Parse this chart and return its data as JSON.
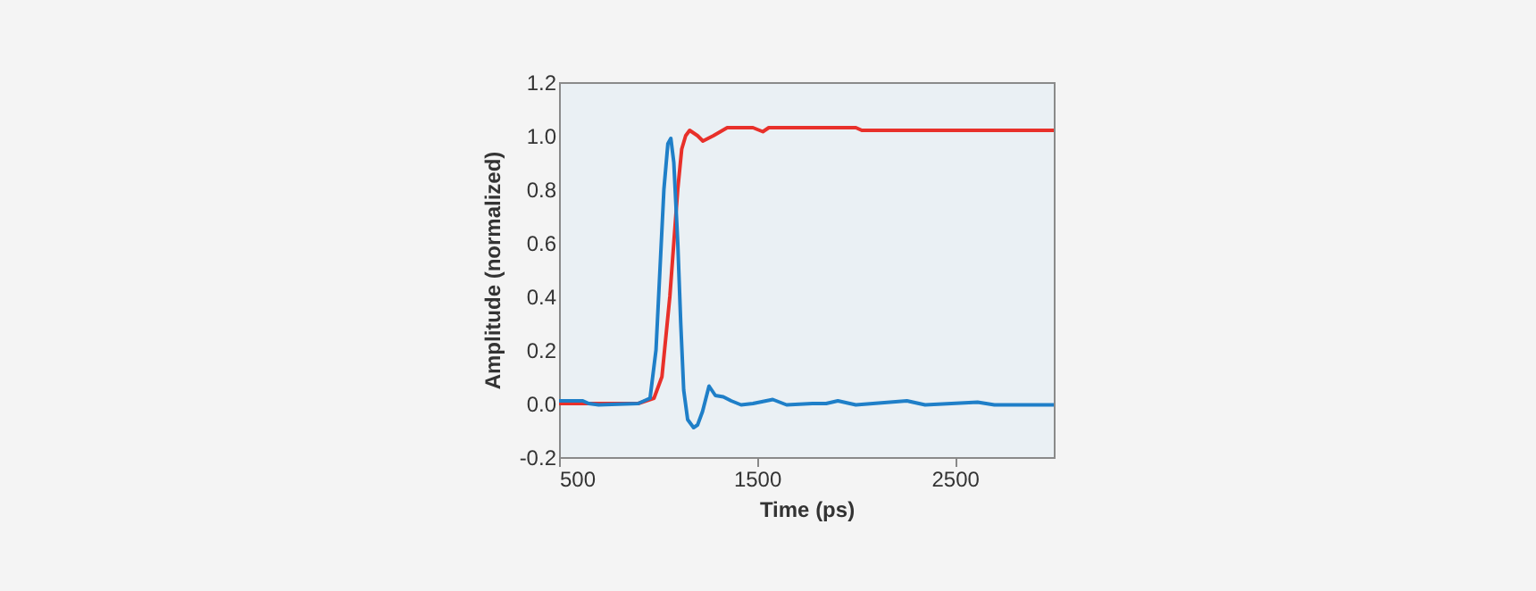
{
  "chart_data": {
    "type": "line",
    "xlabel": "Time (ps)",
    "ylabel": "Amplitude (normalized)",
    "xlim": [
      500,
      3000
    ],
    "xticks": [
      500,
      1500,
      2500
    ],
    "ylim": [
      -0.2,
      1.2
    ],
    "yticks": [
      {
        "value": -0.2,
        "label": "-0.2"
      },
      {
        "value": 0,
        "label": "0.0"
      },
      {
        "value": 0.2,
        "label": "0.2"
      },
      {
        "value": 0.4,
        "label": "0.4"
      },
      {
        "value": 0.6,
        "label": "0.6"
      },
      {
        "value": 0.8,
        "label": "0.8"
      },
      {
        "value": 1,
        "label": "1.0"
      },
      {
        "value": 1.2,
        "label": "1.2"
      }
    ],
    "grid": false,
    "legend": false,
    "marker": "none",
    "line_style": "solid",
    "series": [
      {
        "color": "#e8302a",
        "x": [
          500,
          900,
          980,
          1020,
          1060,
          1080,
          1100,
          1120,
          1140,
          1160,
          1200,
          1227,
          1280,
          1350,
          1480,
          1530,
          1560,
          2000,
          2030,
          3000
        ],
        "values": [
          0.0,
          0.0,
          0.02,
          0.1,
          0.4,
          0.6,
          0.8,
          0.95,
          1.0,
          1.02,
          1.0,
          0.98,
          1.0,
          1.03,
          1.03,
          1.015,
          1.03,
          1.03,
          1.02,
          1.02
        ]
      },
      {
        "color": "#1f7fc8",
        "x": [
          500,
          620,
          650,
          700,
          900,
          960,
          990,
          1010,
          1030,
          1050,
          1065,
          1080,
          1100,
          1115,
          1130,
          1150,
          1180,
          1200,
          1225,
          1258,
          1290,
          1330,
          1370,
          1420,
          1480,
          1580,
          1650,
          1780,
          1850,
          1909,
          2000,
          2258,
          2350,
          2615,
          2700,
          3000
        ],
        "values": [
          0.01,
          0.01,
          0.0,
          -0.005,
          0.0,
          0.02,
          0.2,
          0.5,
          0.8,
          0.97,
          0.99,
          0.9,
          0.6,
          0.3,
          0.05,
          -0.06,
          -0.09,
          -0.08,
          -0.03,
          0.065,
          0.03,
          0.025,
          0.01,
          -0.005,
          0.0,
          0.015,
          -0.005,
          0.0,
          0.0,
          0.01,
          -0.005,
          0.01,
          -0.005,
          0.005,
          -0.005,
          -0.005
        ]
      }
    ]
  }
}
